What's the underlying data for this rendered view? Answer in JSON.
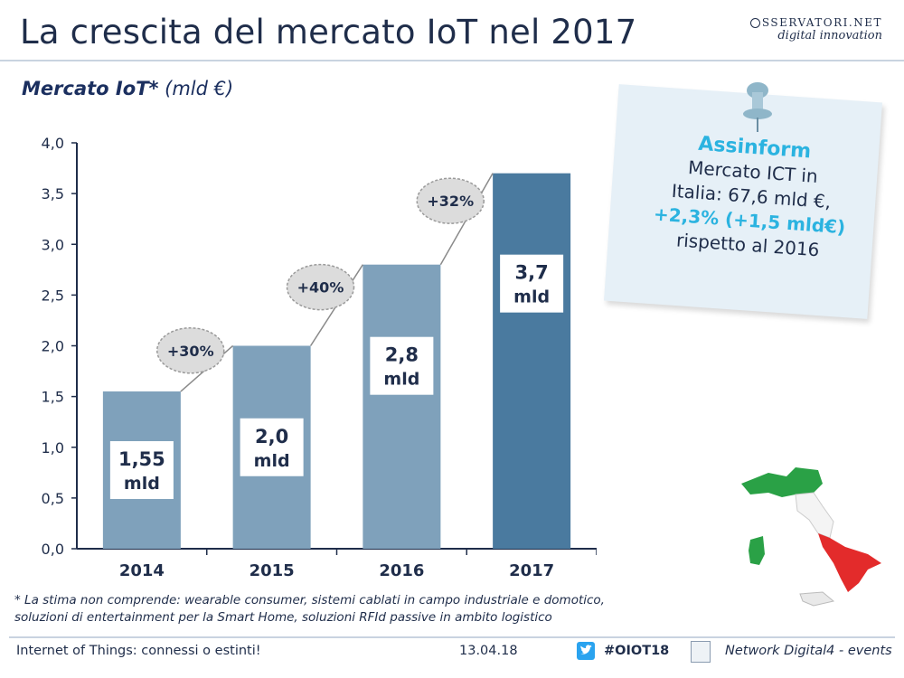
{
  "header": {
    "title": "La crescita del mercato IoT nel 2017",
    "brand_line1": "SSERVATORI.NET",
    "brand_line2": "digital innovation"
  },
  "subtitle": {
    "bold": "Mercato IoT*",
    "unit": " (mld €)"
  },
  "chart_data": {
    "type": "bar",
    "categories": [
      "2014",
      "2015",
      "2016",
      "2017"
    ],
    "values": [
      1.55,
      2.0,
      2.8,
      3.7
    ],
    "value_labels": [
      [
        "1,55",
        "mld"
      ],
      [
        "2,0",
        "mld"
      ],
      [
        "2,8",
        "mld"
      ],
      [
        "3,7",
        "mld"
      ]
    ],
    "growth_labels": [
      "+30%",
      "+40%",
      "+32%"
    ],
    "ylim": [
      0,
      4.0
    ],
    "yticks": [
      "0,0",
      "0,5",
      "1,0",
      "1,5",
      "2,0",
      "2,5",
      "3,0",
      "3,5",
      "4,0"
    ],
    "ytick_values": [
      0,
      0.5,
      1.0,
      1.5,
      2.0,
      2.5,
      3.0,
      3.5,
      4.0
    ],
    "bar_colors": [
      "#7fa1bb",
      "#7fa1bb",
      "#7fa1bb",
      "#4a7a9f"
    ],
    "title": "Mercato IoT* (mld €)",
    "xlabel": "",
    "ylabel": ""
  },
  "note": {
    "title": "Assinform",
    "line1": "Mercato ICT in",
    "line2": "Italia: 67,6 mld €,",
    "line3": "+2,3% (+1,5 mld€)",
    "line4": "rispetto al 2016"
  },
  "footnote": {
    "line1": "* La stima non comprende: wearable consumer, sistemi cablati in campo industriale e domotico,",
    "line2": "soluzioni di entertainment per la Smart Home, soluzioni RFId passive in ambito logistico"
  },
  "footer": {
    "left": "Internet of Things: connessi o estinti!",
    "date": "13.04.18",
    "hashtag": "#OIOT18",
    "network": "Network Digital4 - events"
  },
  "colors": {
    "accent": "#2bb3e0",
    "title": "#1f2d4a",
    "bar": "#7fa1bb",
    "bar_highlight": "#4a7a9f"
  }
}
